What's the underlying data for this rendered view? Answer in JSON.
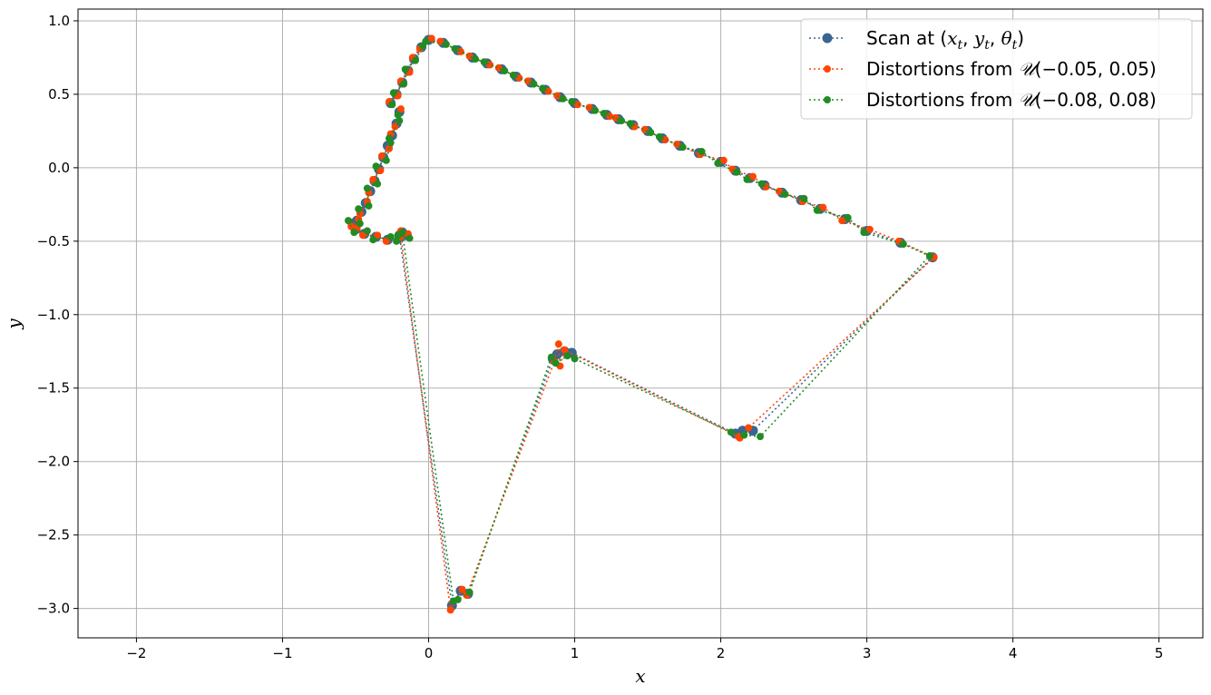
{
  "chart_data": {
    "type": "scatter",
    "title": "",
    "xlabel": "x",
    "ylabel": "y",
    "xlim": [
      -2.4,
      5.3
    ],
    "ylim": [
      -3.2,
      1.08
    ],
    "xticks": [
      -2,
      -1,
      0,
      1,
      2,
      3,
      4,
      5
    ],
    "yticks": [
      -3.0,
      -2.5,
      -2.0,
      -1.5,
      -1.0,
      -0.5,
      0.0,
      0.5,
      1.0
    ],
    "xtick_labels": [
      "−2",
      "−1",
      "0",
      "1",
      "2",
      "3",
      "4",
      "5"
    ],
    "ytick_labels": [
      "−3.0",
      "−2.5",
      "−2.0",
      "−1.5",
      "−1.0",
      "−0.5",
      "0.0",
      "0.5",
      "1.0"
    ],
    "grid": true,
    "legend_position": "top-right",
    "series": [
      {
        "name": "Scan at (x_t, y_t, θ_t)",
        "legend": {
          "prefix": "Scan at (",
          "a": "x",
          "as": "t",
          "b": "y",
          "bs": "t",
          "c": "θ",
          "cs": "t",
          "suffix": ")"
        },
        "color": "#3a6593",
        "line_style": "dotted",
        "marker_size": 5.5,
        "x": [
          -0.2,
          -0.22,
          -0.25,
          -0.28,
          -0.31,
          -0.34,
          -0.37,
          -0.4,
          -0.43,
          -0.46,
          -0.49,
          -0.52,
          -0.5,
          -0.44,
          -0.36,
          -0.28,
          -0.2,
          -0.15,
          -0.18,
          -0.2,
          0.16,
          0.22,
          0.27,
          0.85,
          0.88,
          0.93,
          0.98,
          2.1,
          2.15,
          2.22,
          3.45,
          3.23,
          3.0,
          2.85,
          2.68,
          2.55,
          2.42,
          2.3,
          2.2,
          2.1,
          2.0,
          1.85,
          1.72,
          1.6,
          1.5,
          1.4,
          1.3,
          1.22,
          1.12,
          1.0,
          0.9,
          0.8,
          0.7,
          0.6,
          0.5,
          0.4,
          0.3,
          0.2,
          0.1,
          0.0,
          -0.05,
          -0.1,
          -0.14,
          -0.18,
          -0.22,
          -0.26
        ],
        "y": [
          0.38,
          0.3,
          0.22,
          0.15,
          0.07,
          -0.01,
          -0.09,
          -0.16,
          -0.24,
          -0.3,
          -0.36,
          -0.38,
          -0.42,
          -0.45,
          -0.47,
          -0.49,
          -0.48,
          -0.46,
          -0.44,
          -0.46,
          -2.98,
          -2.88,
          -2.9,
          -1.3,
          -1.27,
          -1.25,
          -1.26,
          -1.81,
          -1.79,
          -1.79,
          -0.61,
          -0.51,
          -0.43,
          -0.35,
          -0.28,
          -0.22,
          -0.17,
          -0.12,
          -0.07,
          -0.02,
          0.04,
          0.1,
          0.15,
          0.2,
          0.25,
          0.29,
          0.33,
          0.36,
          0.4,
          0.44,
          0.48,
          0.53,
          0.58,
          0.62,
          0.67,
          0.71,
          0.75,
          0.8,
          0.85,
          0.87,
          0.82,
          0.74,
          0.66,
          0.58,
          0.5,
          0.44
        ]
      },
      {
        "name": "Distortions from 𝒰(−0.05, 0.05)",
        "legend": {
          "prefix": "Distortions from ",
          "u": "𝒰",
          "suffix": "(−0.05, 0.05)"
        },
        "color": "#ff4500",
        "line_style": "dotted",
        "marker_size": 4,
        "x": [
          -0.19,
          -0.23,
          -0.26,
          -0.27,
          -0.32,
          -0.33,
          -0.38,
          -0.41,
          -0.42,
          -0.47,
          -0.48,
          -0.53,
          -0.49,
          -0.45,
          -0.35,
          -0.29,
          -0.19,
          -0.14,
          -0.19,
          -0.19,
          0.15,
          0.23,
          0.26,
          0.86,
          0.89,
          0.9,
          0.93,
          2.12,
          2.13,
          2.19,
          3.46,
          3.22,
          3.02,
          2.83,
          2.7,
          2.56,
          2.4,
          2.31,
          2.22,
          2.08,
          2.02,
          1.86,
          1.7,
          1.62,
          1.48,
          1.41,
          1.28,
          1.24,
          1.1,
          1.02,
          0.88,
          0.82,
          0.68,
          0.62,
          0.48,
          0.42,
          0.28,
          0.22,
          0.08,
          0.02,
          -0.06,
          -0.11,
          -0.13,
          -0.19,
          -0.21,
          -0.27
        ],
        "y": [
          0.4,
          0.28,
          0.23,
          0.13,
          0.08,
          -0.02,
          -0.08,
          -0.17,
          -0.23,
          -0.31,
          -0.35,
          -0.4,
          -0.41,
          -0.46,
          -0.46,
          -0.5,
          -0.47,
          -0.45,
          -0.43,
          -0.47,
          -3.01,
          -2.87,
          -2.91,
          -1.32,
          -1.2,
          -1.35,
          -1.24,
          -1.83,
          -1.84,
          -1.77,
          -0.61,
          -0.5,
          -0.42,
          -0.36,
          -0.27,
          -0.23,
          -0.16,
          -0.13,
          -0.06,
          -0.01,
          0.05,
          0.09,
          0.16,
          0.19,
          0.26,
          0.28,
          0.34,
          0.35,
          0.41,
          0.43,
          0.49,
          0.52,
          0.59,
          0.61,
          0.68,
          0.7,
          0.76,
          0.79,
          0.86,
          0.88,
          0.81,
          0.75,
          0.65,
          0.59,
          0.49,
          0.45
        ]
      },
      {
        "name": "Distortions from 𝒰(−0.08, 0.08)",
        "legend": {
          "prefix": "Distortions from ",
          "u": "𝒰",
          "suffix": "(−0.08, 0.08)"
        },
        "color": "#228b22",
        "line_style": "dotted",
        "marker_size": 4,
        "x": [
          -0.21,
          -0.2,
          -0.27,
          -0.26,
          -0.29,
          -0.36,
          -0.35,
          -0.42,
          -0.41,
          -0.48,
          -0.47,
          -0.55,
          -0.51,
          -0.42,
          -0.38,
          -0.26,
          -0.22,
          -0.13,
          -0.21,
          -0.18,
          0.17,
          0.2,
          0.28,
          0.84,
          0.87,
          0.95,
          1.0,
          2.07,
          2.16,
          2.27,
          3.43,
          3.25,
          2.98,
          2.87,
          2.66,
          2.57,
          2.44,
          2.28,
          2.18,
          2.11,
          1.98,
          1.87,
          1.74,
          1.58,
          1.52,
          1.38,
          1.32,
          1.2,
          1.14,
          0.98,
          0.92,
          0.78,
          0.72,
          0.58,
          0.52,
          0.38,
          0.32,
          0.18,
          0.12,
          -0.02,
          -0.04,
          -0.09,
          -0.16,
          -0.17,
          -0.24,
          -0.25
        ],
        "y": [
          0.36,
          0.32,
          0.2,
          0.17,
          0.05,
          0.01,
          -0.11,
          -0.14,
          -0.26,
          -0.28,
          -0.38,
          -0.36,
          -0.44,
          -0.43,
          -0.49,
          -0.47,
          -0.5,
          -0.48,
          -0.46,
          -0.44,
          -2.95,
          -2.94,
          -2.89,
          -1.29,
          -1.33,
          -1.28,
          -1.3,
          -1.8,
          -1.82,
          -1.83,
          -0.6,
          -0.52,
          -0.44,
          -0.34,
          -0.29,
          -0.21,
          -0.18,
          -0.11,
          -0.08,
          -0.03,
          0.03,
          0.11,
          0.14,
          0.21,
          0.24,
          0.3,
          0.32,
          0.37,
          0.39,
          0.45,
          0.47,
          0.54,
          0.57,
          0.63,
          0.66,
          0.72,
          0.74,
          0.81,
          0.84,
          0.86,
          0.83,
          0.73,
          0.67,
          0.57,
          0.51,
          0.43
        ]
      }
    ]
  }
}
